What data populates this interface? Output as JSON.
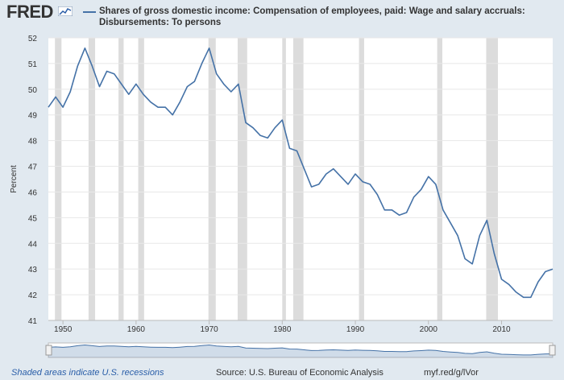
{
  "logo": {
    "text": "FRED"
  },
  "title": {
    "line1": "Shares of gross domestic income: Compensation of employees, paid: Wage and salary accruals:",
    "line2": "Disbursements: To persons"
  },
  "colors": {
    "series": "#4572a7",
    "recession": "#dcdcdc",
    "plot_bg": "#ffffff",
    "page_bg": "#e1e9f0",
    "grid": "#e8e8e8"
  },
  "footer": {
    "recession_note": "Shaded areas indicate U.S. recessions",
    "source": "Source: U.S. Bureau of Economic Analysis",
    "url": "myf.red/g/lVor"
  },
  "chart_data": {
    "type": "line",
    "title": "Shares of gross domestic income: Compensation of employees, paid: Wage and salary accruals: Disbursements: To persons",
    "xlabel": "",
    "ylabel": "Percent",
    "xlim": [
      1948,
      2017
    ],
    "ylim": [
      41,
      52
    ],
    "x_ticks": [
      1950,
      1960,
      1970,
      1980,
      1990,
      2000,
      2010
    ],
    "y_ticks": [
      41,
      42,
      43,
      44,
      45,
      46,
      47,
      48,
      49,
      50,
      51,
      52
    ],
    "grid": true,
    "recessions": [
      [
        1948.9,
        1949.8
      ],
      [
        1953.5,
        1954.4
      ],
      [
        1957.6,
        1958.3
      ],
      [
        1960.3,
        1961.1
      ],
      [
        1969.9,
        1970.9
      ],
      [
        1973.9,
        1975.2
      ],
      [
        1980.0,
        1980.5
      ],
      [
        1981.5,
        1982.9
      ],
      [
        1990.5,
        1991.2
      ],
      [
        2001.2,
        2001.9
      ],
      [
        2007.9,
        2009.5
      ]
    ],
    "series": [
      {
        "name": "Shares of gross domestic income: Compensation of employees, paid: Wage and salary accruals: Disbursements: To persons",
        "x": [
          1948,
          1949,
          1950,
          1951,
          1952,
          1953,
          1954,
          1955,
          1956,
          1957,
          1958,
          1959,
          1960,
          1961,
          1962,
          1963,
          1964,
          1965,
          1966,
          1967,
          1968,
          1969,
          1970,
          1971,
          1972,
          1973,
          1974,
          1975,
          1976,
          1977,
          1978,
          1979,
          1980,
          1981,
          1982,
          1983,
          1984,
          1985,
          1986,
          1987,
          1988,
          1989,
          1990,
          1991,
          1992,
          1993,
          1994,
          1995,
          1996,
          1997,
          1998,
          1999,
          2000,
          2001,
          2002,
          2003,
          2004,
          2005,
          2006,
          2007,
          2008,
          2009,
          2010,
          2011,
          2012,
          2013,
          2014,
          2015,
          2016,
          2017
        ],
        "values": [
          49.3,
          49.7,
          49.3,
          49.9,
          50.9,
          51.6,
          50.9,
          50.1,
          50.7,
          50.6,
          50.2,
          49.8,
          50.2,
          49.8,
          49.5,
          49.3,
          49.3,
          49.0,
          49.5,
          50.1,
          50.3,
          51.0,
          51.6,
          50.6,
          50.2,
          49.9,
          50.2,
          48.7,
          48.5,
          48.2,
          48.1,
          48.5,
          48.8,
          47.7,
          47.6,
          46.9,
          46.2,
          46.3,
          46.7,
          46.9,
          46.6,
          46.3,
          46.7,
          46.4,
          46.3,
          45.9,
          45.3,
          45.3,
          45.1,
          45.2,
          45.8,
          46.1,
          46.6,
          46.3,
          45.3,
          44.8,
          44.3,
          43.4,
          43.2,
          44.3,
          44.9,
          43.6,
          42.6,
          42.4,
          42.1,
          41.9,
          41.9,
          42.5,
          42.9,
          43.0
        ]
      }
    ]
  }
}
